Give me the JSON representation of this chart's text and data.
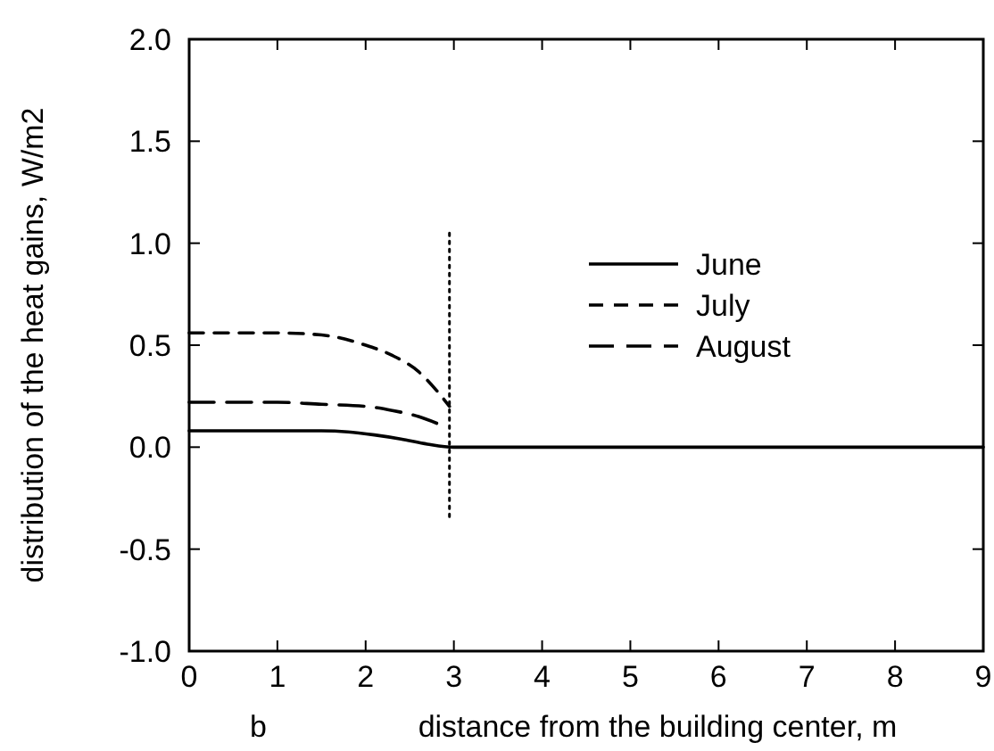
{
  "chart_data": {
    "type": "line",
    "xlabel": "distance from the building center, m",
    "ylabel": "distribution of the heat gains, W/m2",
    "annotations": [
      "b"
    ],
    "xlim": [
      0,
      9
    ],
    "xticks": [
      0,
      1,
      2,
      3,
      4,
      5,
      6,
      7,
      8,
      9
    ],
    "ylim": [
      -1,
      2
    ],
    "yticks": [
      {
        "value": -1,
        "label": "-1.0"
      },
      {
        "value": -0.5,
        "label": "-0.5"
      },
      {
        "value": 0,
        "label": "0.0"
      },
      {
        "value": 0.5,
        "label": "0.5"
      },
      {
        "value": 1,
        "label": "1.0"
      },
      {
        "value": 1.5,
        "label": "1.5"
      },
      {
        "value": 2,
        "label": "2.0"
      }
    ],
    "grid": false,
    "legend": "right",
    "marker": "none",
    "series": [
      {
        "name": "June",
        "color": "#000000",
        "line_style": "solid",
        "x": [
          0,
          0.5,
          1,
          1.5,
          1.8,
          2.1,
          2.4,
          2.7,
          3,
          4,
          5,
          6,
          7,
          8,
          9
        ],
        "values": [
          0.08,
          0.08,
          0.08,
          0.08,
          0.075,
          0.06,
          0.04,
          0.015,
          0,
          0,
          0,
          0,
          0,
          0,
          0
        ]
      },
      {
        "name": "July",
        "color": "#000000",
        "line_style": "dashed",
        "x": [
          0,
          0.5,
          1,
          1.5,
          2,
          2.3,
          2.6,
          2.8,
          2.95
        ],
        "values": [
          0.56,
          0.56,
          0.56,
          0.55,
          0.5,
          0.45,
          0.37,
          0.28,
          0.2
        ]
      },
      {
        "name": "August",
        "color": "#000000",
        "line_style": "dashed",
        "x": [
          0,
          0.5,
          1,
          1.5,
          2,
          2.3,
          2.6,
          2.9
        ],
        "values": [
          0.22,
          0.22,
          0.22,
          0.21,
          0.2,
          0.18,
          0.15,
          0.1
        ]
      },
      {
        "color": "#000000",
        "line_style": "dotted",
        "x": [
          2.95,
          2.95
        ],
        "values": [
          1.05,
          -0.35
        ]
      }
    ]
  }
}
